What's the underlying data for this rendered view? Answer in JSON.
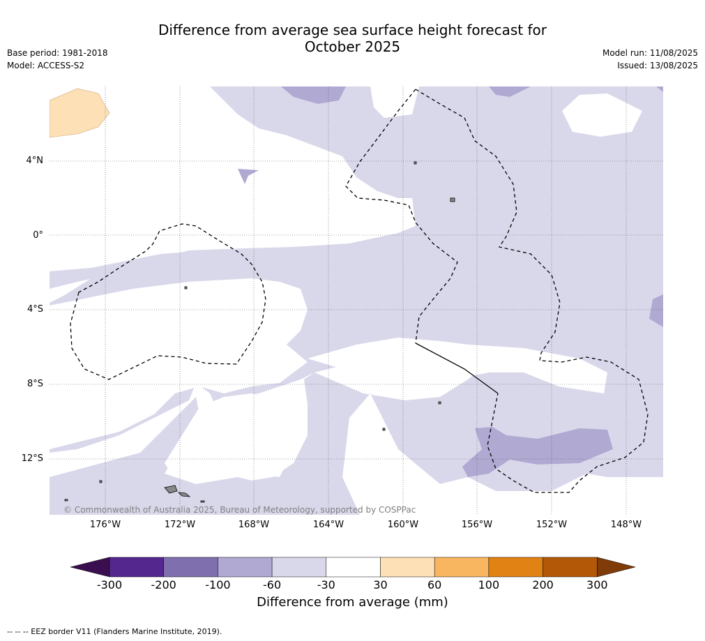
{
  "title_line1": "Difference from average sea surface height forecast for",
  "title_line2": "October 2025",
  "base_period": "Base period: 1981-2018",
  "model": "Model: ACCESS-S2",
  "model_run": "Model run: 11/08/2025",
  "issued": "Issued: 13/08/2025",
  "lat_labels": [
    "4°N",
    "0°",
    "4°S",
    "8°S",
    "12°S"
  ],
  "lon_labels": [
    "176°W",
    "172°W",
    "168°W",
    "164°W",
    "160°W",
    "156°W",
    "152°W",
    "148°W"
  ],
  "copyright": "© Commonwealth of Australia 2025, Bureau of Meteorology, supported by COSPPac",
  "colorbar": {
    "title": "Difference from average (mm)",
    "ticks": [
      "-300",
      "-200",
      "-100",
      "-60",
      "-30",
      "30",
      "60",
      "100",
      "200",
      "300"
    ],
    "colors": [
      "#3b0f4f",
      "#54278f",
      "#7f6fae",
      "#b0a9d2",
      "#d9d8eb",
      "#ffffff",
      "#fee0b6",
      "#f9b661",
      "#e08214",
      "#b35806",
      "#7f3b08"
    ]
  },
  "footer": "--  --  -- EEZ border V11 (Flanders Marine Institute, 2019)."
}
